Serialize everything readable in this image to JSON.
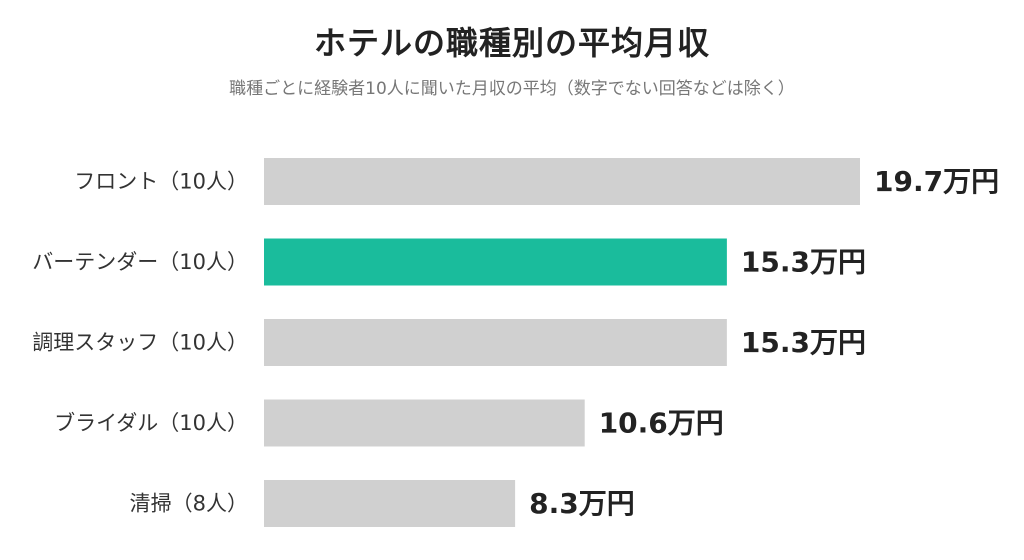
{
  "title": "ホテルの職種別の平均月収",
  "subtitle": "職種ごとに経験者10人に聞いた月収の平均（数字でない回答などは除く）",
  "colors": {
    "highlight": "#1ABC9C",
    "default": "#D0D0D0",
    "label_text": "#333333",
    "value_text": "#222222"
  },
  "chart_data": {
    "type": "bar",
    "orientation": "horizontal",
    "unit": "万円",
    "categories": [
      "フロント（10人）",
      "バーテンダー（10人）",
      "調理スタッフ（10人）",
      "ブライダル（10人）",
      "清掃（8人）"
    ],
    "values": [
      19.7,
      15.3,
      15.3,
      10.6,
      8.3
    ],
    "value_labels": [
      "19.7万円",
      "15.3万円",
      "15.3万円",
      "10.6万円",
      "8.3万円"
    ],
    "highlight_index": 1,
    "xlim": [
      0,
      19.7
    ],
    "grid": false,
    "legend": "none"
  }
}
